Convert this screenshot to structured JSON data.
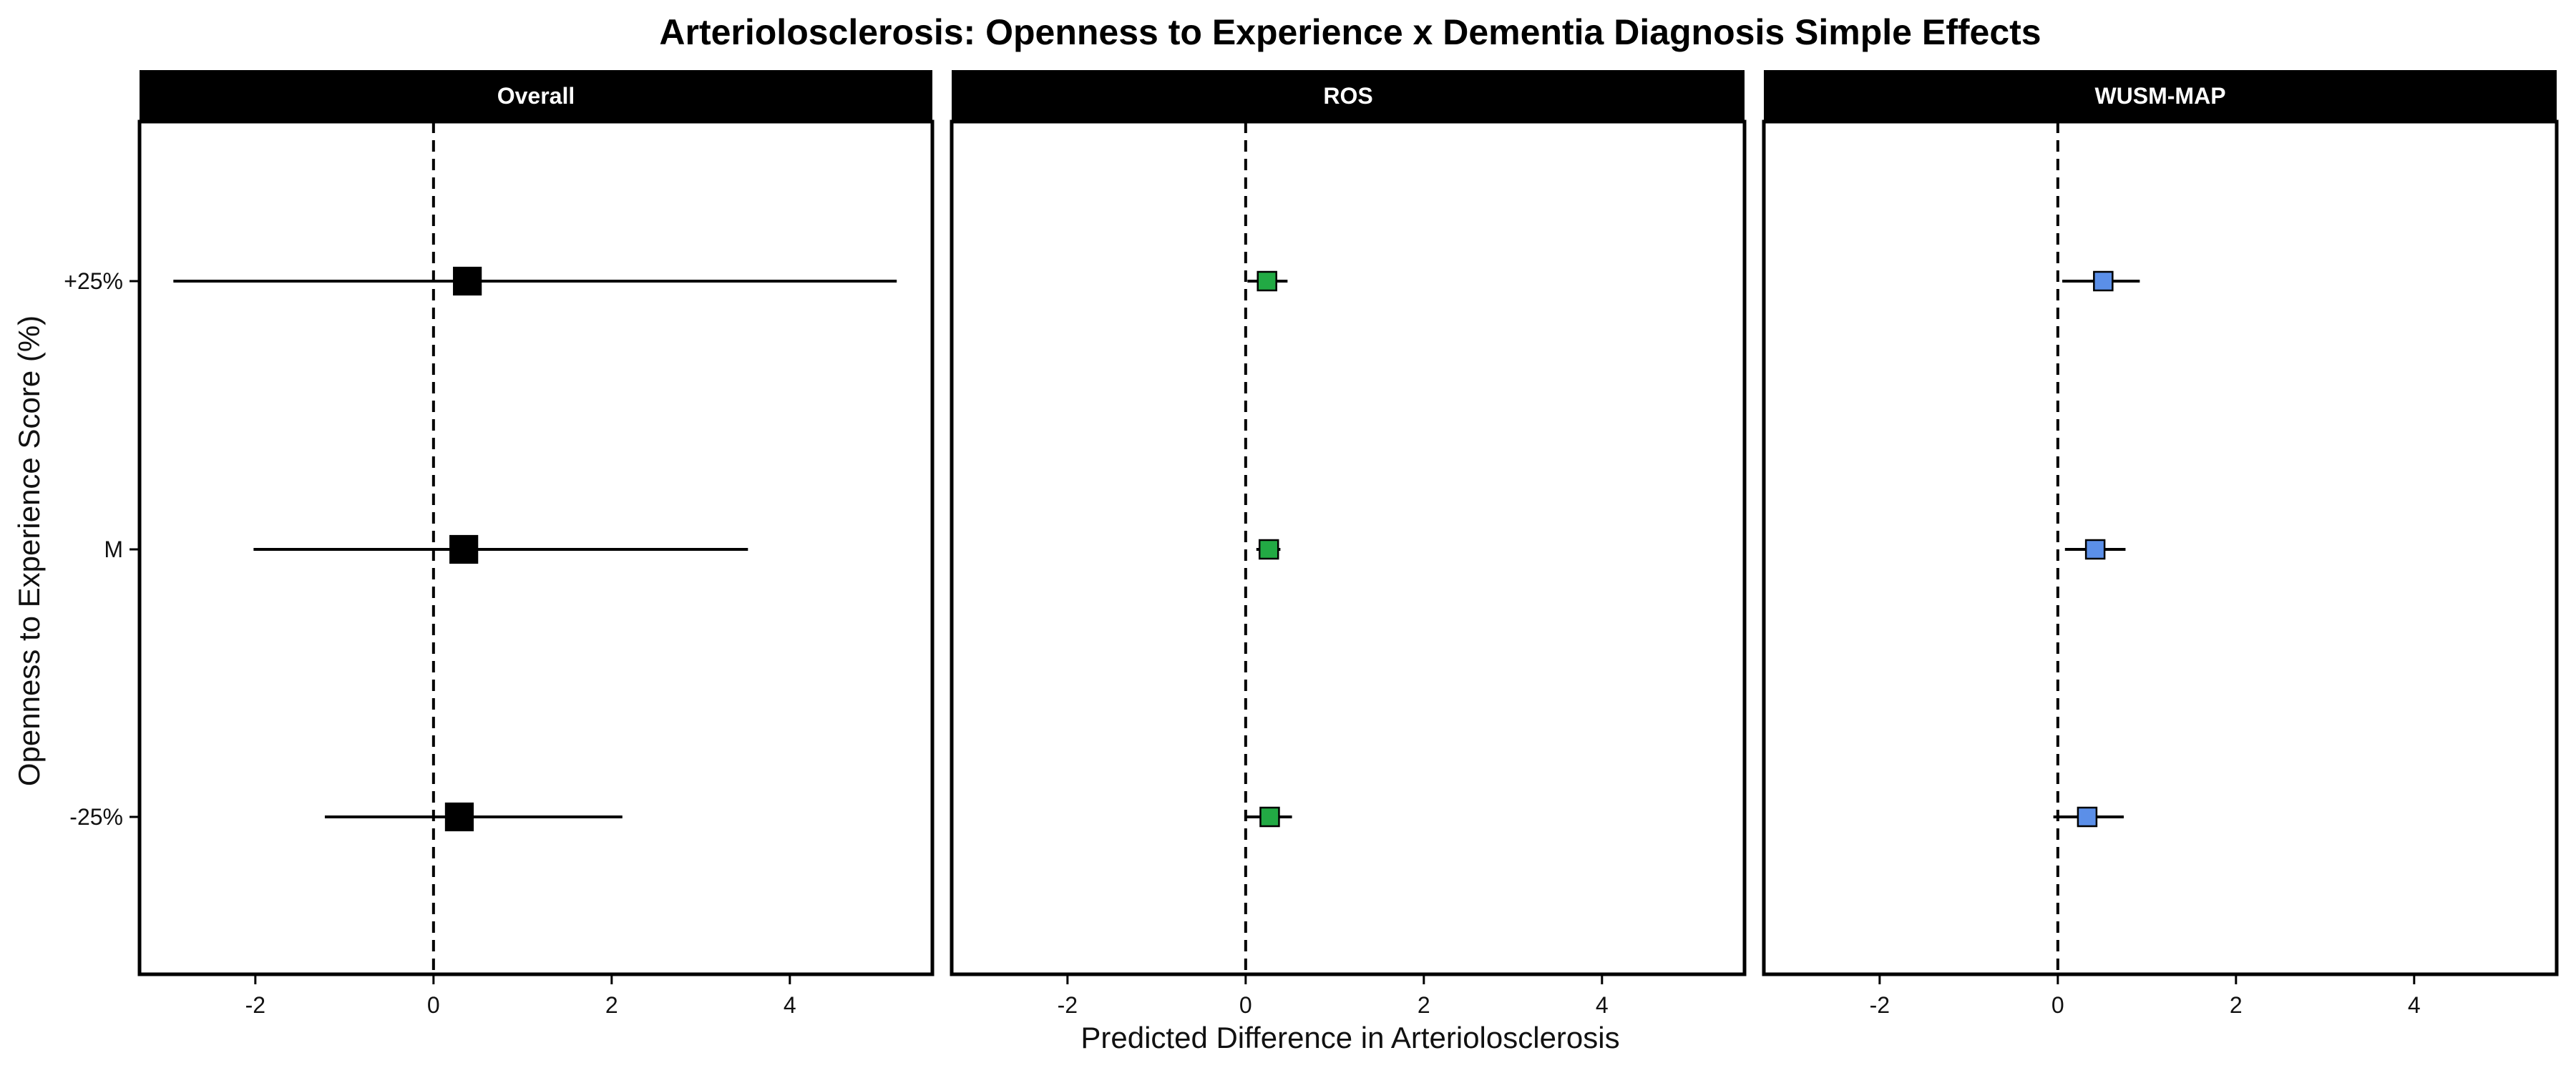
{
  "chart_data": {
    "type": "scatter",
    "title": "Arteriolosclerosis: Openness to Experience x Dementia Diagnosis Simple Effects",
    "xlabel": "Predicted Difference in Arteriolosclerosis",
    "ylabel": "Openness to Experience Score (%)",
    "xlim": [
      -3.3,
      5.6
    ],
    "x_ticks": [
      -2,
      0,
      2,
      4
    ],
    "x_tick_labels": [
      "-2",
      "0",
      "2",
      "4"
    ],
    "categories": [
      "-25%",
      "M",
      "+25%"
    ],
    "reference_line": 0,
    "panels": [
      {
        "name": "Overall",
        "color": "#000000",
        "marker_scale": 1.45,
        "points": [
          {
            "category": "+25%",
            "estimate": 0.38,
            "lower": -2.92,
            "upper": 5.2
          },
          {
            "category": "M",
            "estimate": 0.34,
            "lower": -2.02,
            "upper": 3.53
          },
          {
            "category": "-25%",
            "estimate": 0.29,
            "lower": -1.22,
            "upper": 2.12
          }
        ]
      },
      {
        "name": "ROS",
        "color": "#22aa44",
        "marker_scale": 1.0,
        "points": [
          {
            "category": "+25%",
            "estimate": 0.24,
            "lower": 0.02,
            "upper": 0.47
          },
          {
            "category": "M",
            "estimate": 0.26,
            "lower": 0.12,
            "upper": 0.39
          },
          {
            "category": "-25%",
            "estimate": 0.27,
            "lower": 0.01,
            "upper": 0.52
          }
        ]
      },
      {
        "name": "WUSM-MAP",
        "color": "#5b8fe8",
        "marker_scale": 1.0,
        "points": [
          {
            "category": "+25%",
            "estimate": 0.51,
            "lower": 0.05,
            "upper": 0.92
          },
          {
            "category": "M",
            "estimate": 0.42,
            "lower": 0.08,
            "upper": 0.76
          },
          {
            "category": "-25%",
            "estimate": 0.33,
            "lower": -0.05,
            "upper": 0.74
          }
        ]
      }
    ]
  }
}
